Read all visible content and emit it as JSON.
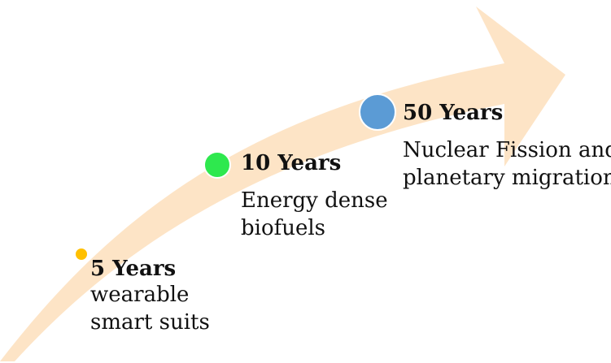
{
  "colors": {
    "arrow_fill": "#fde4c6",
    "milestone_5": "#ffc000",
    "milestone_10": "#2ee84e",
    "milestone_50": "#5b9bd5"
  },
  "milestones": [
    {
      "year": "5 Years",
      "desc_line1": "wearable",
      "desc_line2": "smart suits"
    },
    {
      "year": "10 Years",
      "desc_line1": "Energy dense",
      "desc_line2": "biofuels"
    },
    {
      "year": "50 Years",
      "desc_line1": "Nuclear Fission and",
      "desc_line2": "planetary migration"
    }
  ]
}
